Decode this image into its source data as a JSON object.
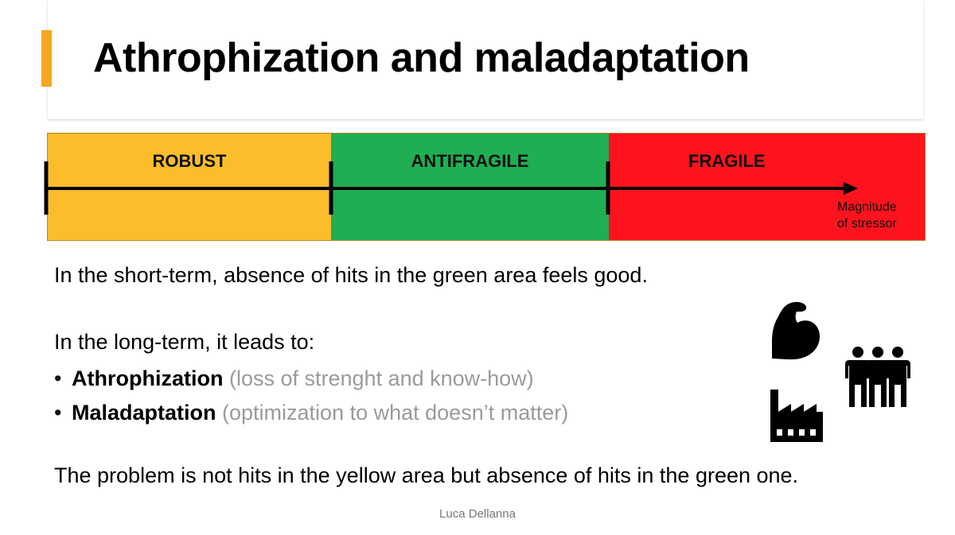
{
  "slide": {
    "title": "Athrophization and maladaptation",
    "accent_color": "#f5a623"
  },
  "zones": [
    {
      "label": "ROBUST",
      "color": "#fbbd2c"
    },
    {
      "label": "ANTIFRAGILE",
      "color": "#1fae52"
    },
    {
      "label": "FRAGILE",
      "color": "#fd131d"
    }
  ],
  "axis": {
    "caption_line1": "Magnitude",
    "caption_line2": "of stressor"
  },
  "body": {
    "short_term": "In the short-term, absence of hits in the green area feels good.",
    "long_term_intro": "In the long-term, it leads to:",
    "bullets": [
      {
        "term": "Athrophization",
        "detail": "(loss of strenght and know-how)"
      },
      {
        "term": "Maladaptation",
        "detail": "(optimization to what doesn’t matter)"
      }
    ],
    "conclusion": "The problem is not hits in the yellow area but absence of hits in the green one."
  },
  "icons": [
    "flexed-bicep-icon",
    "factory-icon",
    "group-of-people-icon"
  ],
  "footer": {
    "author": "Luca Dellanna"
  }
}
